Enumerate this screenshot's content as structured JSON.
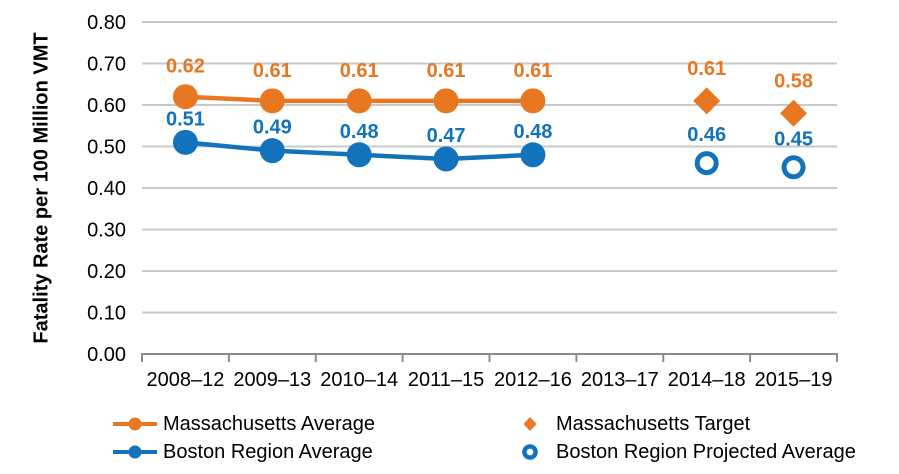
{
  "chart_data": {
    "type": "line",
    "title": "",
    "xlabel": "",
    "ylabel": "Fatality Rate per 100 Million VMT",
    "categories": [
      "2008–12",
      "2009–13",
      "2010–14",
      "2011–15",
      "2012–16",
      "2013–17",
      "2014–18",
      "2015–19"
    ],
    "ylim": [
      0,
      0.8
    ],
    "ytick_labels": [
      "0.00",
      "0.10",
      "0.20",
      "0.30",
      "0.40",
      "0.50",
      "0.60",
      "0.70",
      "0.80"
    ],
    "grid": "horizontal",
    "legend_position": "bottom",
    "data_labels": true,
    "series": [
      {
        "name": "Massachusetts Average",
        "color": "#E87722",
        "marker": "circle",
        "line": true,
        "values": [
          0.62,
          0.61,
          0.61,
          0.61,
          0.61,
          null,
          null,
          null
        ]
      },
      {
        "name": "Massachusetts Target",
        "color": "#E87722",
        "marker": "diamond",
        "line": false,
        "values": [
          null,
          null,
          null,
          null,
          null,
          null,
          0.61,
          0.58
        ]
      },
      {
        "name": "Boston Region Average",
        "color": "#1272BC",
        "marker": "circle",
        "line": true,
        "values": [
          0.51,
          0.49,
          0.48,
          0.47,
          0.48,
          null,
          null,
          null
        ]
      },
      {
        "name": "Boston Region Projected Average",
        "color": "#1272BC",
        "marker": "open-circle",
        "line": false,
        "values": [
          null,
          null,
          null,
          null,
          null,
          null,
          0.46,
          0.45
        ]
      }
    ],
    "colors": {
      "massachusetts_orange": "#E87722",
      "boston_blue": "#1272BC",
      "gridline": "#C9C9C9",
      "axis": "#8C8C8C",
      "text": "#000000"
    }
  }
}
